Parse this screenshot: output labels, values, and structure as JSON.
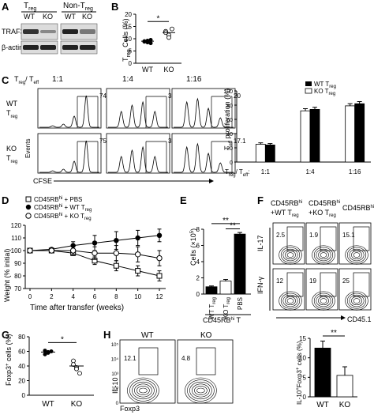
{
  "panels": {
    "A": {
      "letter": "A",
      "treg": "T",
      "treg_sub": "reg",
      "nontreg": "Non-T",
      "nontreg_sub": "reg",
      "col_wt1": "WT",
      "col_ko1": "KO",
      "col_wt2": "WT",
      "col_ko2": "KO",
      "row1": "TRAF3",
      "row2": "β-actin"
    },
    "B": {
      "letter": "B",
      "ylabel_main": "T",
      "ylabel_sub": "reg",
      "ylabel_tail": " Cells (%)",
      "sig": "*",
      "xlabels": [
        "WT",
        "KO"
      ],
      "yticks": [
        "0",
        "5",
        "10",
        "15",
        "20"
      ]
    },
    "C": {
      "letter": "C",
      "header_pre": "T",
      "header_sub1": "reg",
      "header_mid": "/ T",
      "header_sub2": "eff",
      "ratios": [
        "1:1",
        "1:4",
        "1:16"
      ],
      "row1_a": "WT",
      "row1_b": "T",
      "row1_sub": "reg",
      "row2_a": "KO",
      "row2_b": "T",
      "row2_sub": "reg",
      "events": "Events",
      "cfse": "CFSE",
      "gates_wt": [
        "74.5",
        "36.4",
        "20"
      ],
      "gates_ko": [
        "75.5",
        "36.7",
        "17.1"
      ],
      "bar_ylabel_a": "T",
      "bar_ylabel_sub": "eff",
      "bar_ylabel_b": " proliferation (%)",
      "legend": [
        "WT T",
        "KO T"
      ],
      "legend_sub": "reg",
      "bar_x_prefix": "T",
      "bar_x_sub1": "reg",
      "bar_x_mid": "/ T",
      "bar_x_sub2": "eff",
      "bar_x_colon": ":",
      "bar_yticks": [
        "0",
        "20",
        "40",
        "60",
        "80",
        "100"
      ]
    },
    "D": {
      "letter": "D",
      "legend1": "CD45RB",
      "legend1_tail": " + PBS",
      "legend2": "CD45RB",
      "legend2_tail": " + WT T",
      "legend3": "CD45RB",
      "legend3_tail": " + KO T",
      "hi": "hi",
      "reg": "reg",
      "ylabel": "Weight (% initial)",
      "xlabel": "Time after transfer (weeks)",
      "xticks": [
        "0",
        "2",
        "4",
        "6",
        "8",
        "10",
        "12"
      ],
      "yticks": [
        "70",
        "80",
        "90",
        "100",
        "110",
        "120"
      ]
    },
    "E": {
      "letter": "E",
      "ylabel": "Cells (×10",
      "ylabel_exp": "5",
      "ylabel_tail": ")",
      "sig1": "**",
      "sig2": "**",
      "xlabels": [
        "WT T",
        "KO T",
        "PBS"
      ],
      "xlabel_sub": "reg",
      "group": "CD45RB",
      "group_sup": "hi",
      "group_tail": " T",
      "yticks": [
        "0",
        "2",
        "4",
        "6",
        "8"
      ]
    },
    "F": {
      "letter": "F",
      "col1_a": "CD45RB",
      "col1_sup": "hi",
      "col1_b": "+WT T",
      "col1_sub": "reg",
      "col2_a": "CD45RB",
      "col2_sup": "hi",
      "col2_b": "+KO T",
      "col2_sub": "reg",
      "col3_a": "CD45RB",
      "col3_sup": "hi",
      "row1": "IL-17",
      "row2": "IFN-γ",
      "xlabel": "CD45.1",
      "gates_row1": [
        "2.5",
        "1.9",
        "15.1"
      ],
      "gates_row2": [
        "12",
        "19",
        "25"
      ]
    },
    "G": {
      "letter": "G",
      "ylabel": "Foxp3",
      "ylabel_tail": " cells (%)",
      "sup": "+",
      "sig": "*",
      "xlabels": [
        "WT",
        "KO"
      ],
      "yticks": [
        "0",
        "20",
        "40",
        "60",
        "80"
      ]
    },
    "H": {
      "letter": "H",
      "col_wt": "WT",
      "col_ko": "KO",
      "ylabel": "IL-10",
      "xlabel": "Foxp3",
      "gates": [
        "12.1",
        "4.8"
      ],
      "bar_ylabel": "IL-10",
      "bar_ylabel_mid": "Foxp3",
      "bar_ylabel_tail": " cells (%)",
      "sup": "+",
      "sig": "**",
      "xlabels": [
        "WT",
        "KO"
      ],
      "yticks": [
        "0",
        "5",
        "10",
        "15"
      ],
      "flow_ticks": [
        "0",
        "10²",
        "10³",
        "10⁴",
        "10⁵"
      ]
    }
  },
  "chart_data": [
    {
      "type": "scatter",
      "panel": "B",
      "categories": [
        "WT",
        "KO"
      ],
      "series": [
        {
          "name": "WT",
          "values": [
            9.0,
            8.5,
            9.5,
            8.8,
            9.2,
            8.2
          ]
        },
        {
          "name": "KO",
          "values": [
            13.0,
            11.5,
            14.0,
            12.5,
            10.5
          ]
        }
      ],
      "means": [
        9.0,
        12.5
      ],
      "ylabel": "Treg Cells (%)",
      "ylim": [
        0,
        20
      ]
    },
    {
      "type": "bar",
      "panel": "C",
      "categories": [
        "1:1",
        "1:4",
        "1:16"
      ],
      "series": [
        {
          "name": "WT Treg",
          "values": [
            25,
            72,
            79
          ],
          "errors": [
            2,
            3,
            3
          ]
        },
        {
          "name": "KO Treg",
          "values": [
            24,
            74,
            82
          ],
          "errors": [
            2,
            3,
            3
          ]
        }
      ],
      "ylabel": "Teff proliferation (%)",
      "ylim": [
        0,
        100
      ]
    },
    {
      "type": "line",
      "panel": "D",
      "x": [
        0,
        2,
        4,
        6,
        8,
        10,
        12
      ],
      "series": [
        {
          "name": "CD45RBhi + PBS",
          "values": [
            100,
            100,
            98,
            92,
            88,
            84,
            80
          ],
          "errors": [
            0,
            1,
            2,
            3,
            4,
            4,
            4
          ]
        },
        {
          "name": "CD45RBhi + WT Treg",
          "values": [
            100,
            101,
            104,
            106,
            108,
            110,
            112
          ],
          "errors": [
            0,
            1,
            3,
            6,
            7,
            6,
            5
          ]
        },
        {
          "name": "CD45RBhi + KO Treg",
          "values": [
            100,
            100,
            100,
            98,
            98,
            97,
            94
          ],
          "errors": [
            0,
            1,
            3,
            5,
            6,
            6,
            6
          ]
        }
      ],
      "xlabel": "Time after transfer (weeks)",
      "ylabel": "Weight (% initial)",
      "ylim": [
        70,
        120
      ]
    },
    {
      "type": "bar",
      "panel": "E",
      "categories": [
        "WT Treg",
        "KO Treg",
        "PBS"
      ],
      "values": [
        0.9,
        1.6,
        7.4
      ],
      "errors": [
        0.1,
        0.2,
        0.2
      ],
      "ylabel": "Cells (×10⁵)",
      "ylim": [
        0,
        8
      ]
    },
    {
      "type": "scatter",
      "panel": "G",
      "categories": [
        "WT",
        "KO"
      ],
      "series": [
        {
          "name": "WT",
          "values": [
            61,
            58,
            60,
            56,
            59
          ]
        },
        {
          "name": "KO",
          "values": [
            47,
            38,
            30,
            42,
            36
          ]
        }
      ],
      "means": [
        59,
        40
      ],
      "ylabel": "Foxp3+ cells (%)",
      "ylim": [
        0,
        80
      ]
    },
    {
      "type": "bar",
      "panel": "H",
      "categories": [
        "WT",
        "KO"
      ],
      "values": [
        12.5,
        5.5
      ],
      "errors": [
        1.8,
        2.2
      ],
      "ylabel": "IL-10+Foxp3+ cells (%)",
      "ylim": [
        0,
        15
      ]
    }
  ]
}
